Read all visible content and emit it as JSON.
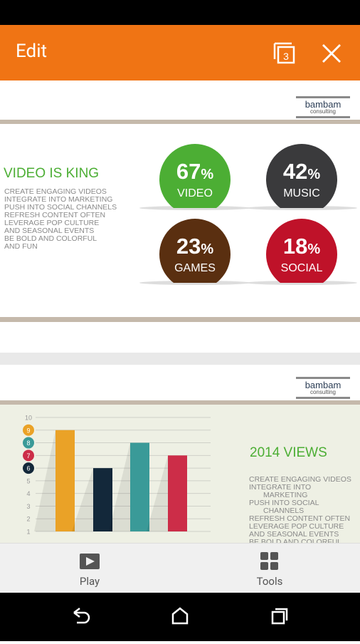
{
  "app_bar": {
    "title": "Edit",
    "tab_count": "3"
  },
  "slides": [
    {
      "logo": {
        "name": "bambam",
        "tagline": "consulting"
      },
      "heading": "VIDEO IS KING",
      "bullets": [
        "CREATE ENGAGING VIDEOS",
        "INTEGRATE INTO MARKETING",
        "PUSH INTO SOCIAL CHANNELS",
        "REFRESH CONTENT OFTEN",
        "LEVERAGE POP CULTURE",
        "AND SEASONAL EVENTS",
        "BE BOLD AND COLORFUL",
        "AND FUN"
      ],
      "stats": [
        {
          "number": "67",
          "unit": "%",
          "label": "VIDEO",
          "color": "#4cae34"
        },
        {
          "number": "42",
          "unit": "%",
          "label": "MUSIC",
          "color": "#3a3a3c"
        },
        {
          "number": "23",
          "unit": "%",
          "label": "GAMES",
          "color": "#5a2f10"
        },
        {
          "number": "18",
          "unit": "%",
          "label": "SOCIAL",
          "color": "#bf1229"
        }
      ]
    },
    {
      "logo": {
        "name": "bambam",
        "tagline": "consulting"
      },
      "chart_data": {
        "type": "bar",
        "values": [
          9,
          6,
          8,
          7
        ],
        "colors": [
          "#eaa227",
          "#13283a",
          "#3a9a98",
          "#cc2d48"
        ],
        "ylim": [
          1,
          10
        ],
        "yticks": [
          1,
          2,
          3,
          4,
          5,
          6,
          7,
          8,
          9,
          10
        ],
        "grid": true
      },
      "heading": "2014 VIEWS",
      "bullets": [
        [
          "CREATE ENGAGING VIDEOS"
        ],
        [
          "INTEGRATE INTO",
          "MARKETING"
        ],
        [
          "PUSH INTO SOCIAL",
          "CHANNELS"
        ],
        [
          "REFRESH CONTENT OFTEN"
        ],
        [
          "LEVERAGE POP CULTURE"
        ],
        [
          "AND SEASONAL EVENTS"
        ],
        [
          "BE BOLD AND COLORFUL"
        ]
      ]
    }
  ],
  "toolbar": {
    "play": "Play",
    "tools": "Tools"
  }
}
